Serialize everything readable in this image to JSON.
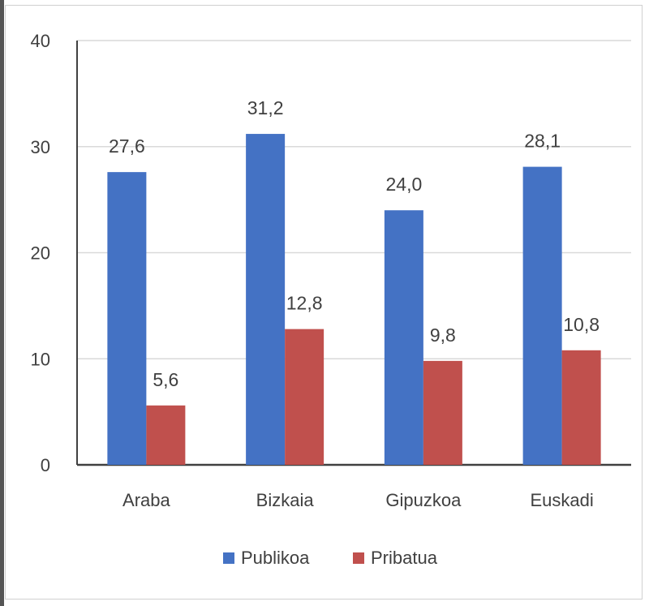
{
  "chart_data": {
    "type": "bar",
    "categories": [
      "Araba",
      "Bizkaia",
      "Gipuzkoa",
      "Euskadi"
    ],
    "series": [
      {
        "name": "Publikoa",
        "values": [
          27.6,
          31.2,
          24.0,
          28.1
        ],
        "labels": [
          "27,6",
          "31,2",
          "24,0",
          "28,1"
        ],
        "color": "#4472C4"
      },
      {
        "name": "Pribatua",
        "values": [
          5.6,
          12.8,
          9.8,
          10.8
        ],
        "labels": [
          "5,6",
          "12,8",
          "9,8",
          "10,8"
        ],
        "color": "#C0504D"
      }
    ],
    "yticks": [
      "0",
      "10",
      "20",
      "30",
      "40"
    ],
    "ylim": [
      0,
      40
    ],
    "grid": true,
    "legend": "bottom-center",
    "title": "",
    "xlabel": "",
    "ylabel": ""
  }
}
